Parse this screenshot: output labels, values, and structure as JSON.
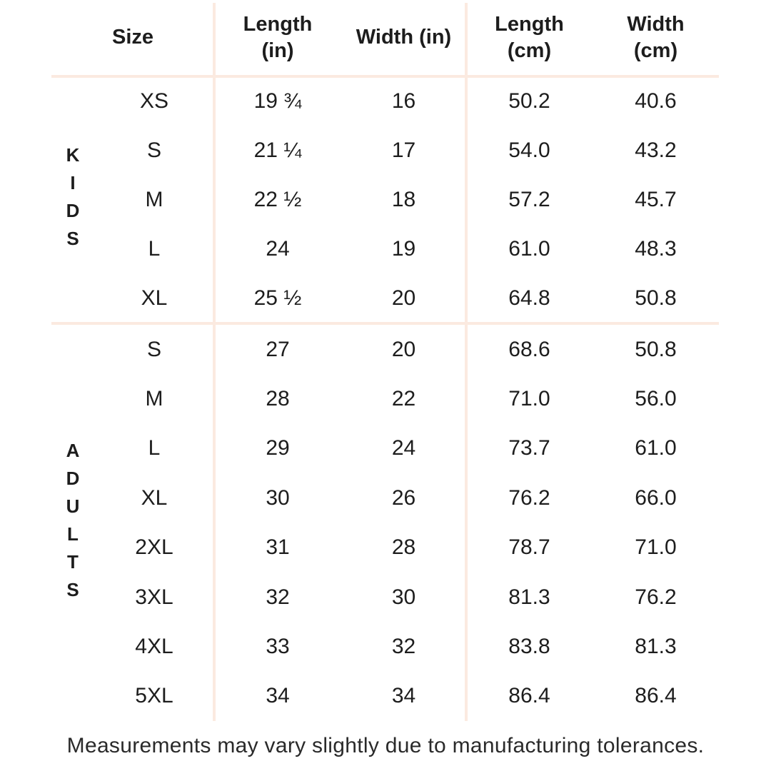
{
  "page": {
    "background_color": "#ffffff",
    "text_color": "#1d1d1d",
    "divider_color": "#fbeae0"
  },
  "chart_data": {
    "type": "table",
    "columns": [
      "Size",
      "Length (in)",
      "Width (in)",
      "Length (cm)",
      "Width (cm)"
    ],
    "header": {
      "size": "Size",
      "length_in": "Length\n(in)",
      "width_in": "Width (in)",
      "length_cm": "Length\n(cm)",
      "width_cm": "Width\n(cm)"
    },
    "groups": [
      {
        "label": "KIDS",
        "rows": [
          {
            "size": "XS",
            "length_in": "19 ¾",
            "width_in": "16",
            "length_cm": "50.2",
            "width_cm": "40.6"
          },
          {
            "size": "S",
            "length_in": "21 ¼",
            "width_in": "17",
            "length_cm": "54.0",
            "width_cm": "43.2"
          },
          {
            "size": "M",
            "length_in": "22 ½",
            "width_in": "18",
            "length_cm": "57.2",
            "width_cm": "45.7"
          },
          {
            "size": "L",
            "length_in": "24",
            "width_in": "19",
            "length_cm": "61.0",
            "width_cm": "48.3"
          },
          {
            "size": "XL",
            "length_in": "25 ½",
            "width_in": "20",
            "length_cm": "64.8",
            "width_cm": "50.8"
          }
        ]
      },
      {
        "label": "ADULTS",
        "rows": [
          {
            "size": "S",
            "length_in": "27",
            "width_in": "20",
            "length_cm": "68.6",
            "width_cm": "50.8"
          },
          {
            "size": "M",
            "length_in": "28",
            "width_in": "22",
            "length_cm": "71.0",
            "width_cm": "56.0"
          },
          {
            "size": "L",
            "length_in": "29",
            "width_in": "24",
            "length_cm": "73.7",
            "width_cm": "61.0"
          },
          {
            "size": "XL",
            "length_in": "30",
            "width_in": "26",
            "length_cm": "76.2",
            "width_cm": "66.0"
          },
          {
            "size": "2XL",
            "length_in": "31",
            "width_in": "28",
            "length_cm": "78.7",
            "width_cm": "71.0"
          },
          {
            "size": "3XL",
            "length_in": "32",
            "width_in": "30",
            "length_cm": "81.3",
            "width_cm": "76.2"
          },
          {
            "size": "4XL",
            "length_in": "33",
            "width_in": "32",
            "length_cm": "83.8",
            "width_cm": "81.3"
          },
          {
            "size": "5XL",
            "length_in": "34",
            "width_in": "34",
            "length_cm": "86.4",
            "width_cm": "86.4"
          }
        ]
      }
    ],
    "footnote": "Measurements may vary slightly due to manufacturing tolerances."
  }
}
